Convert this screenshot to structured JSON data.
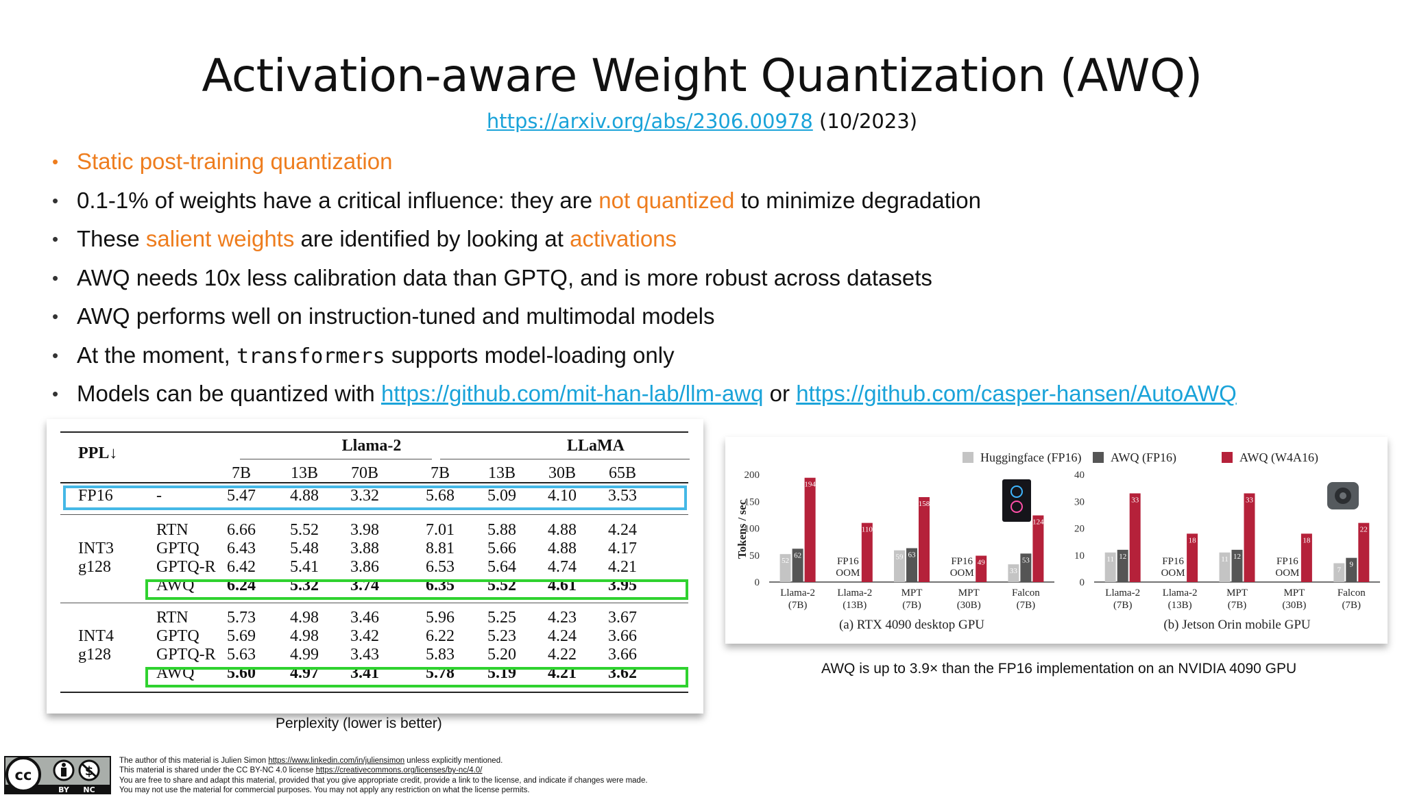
{
  "title": "Activation-aware Weight Quantization (AWQ)",
  "subtitle": {
    "link": "https://arxiv.org/abs/2306.00978",
    "date": "(10/2023)"
  },
  "bullets": {
    "b1": "Static post-training quantization",
    "b2_a": "0.1-1% of weights have a critical influence: they are ",
    "b2_b": "not quantized",
    "b2_c": " to minimize degradation",
    "b3_a": "These ",
    "b3_b": "salient weights",
    "b3_c": " are identified by looking at ",
    "b3_d": "activations",
    "b4": "AWQ needs 10x less calibration data than GPTQ, and is more robust across datasets",
    "b5": "AWQ performs well on instruction-tuned and multimodal models",
    "b6_a": "At the moment, ",
    "b6_code": "transformers",
    "b6_c": " supports model-loading only",
    "b7_a": "Models can be quantized with ",
    "b7_link1": "https://github.com/mit-han-lab/llm-awq",
    "b7_or": " or ",
    "b7_link2": "https://github.com/casper-hansen/AutoAWQ"
  },
  "table": {
    "corner": "PPL↓",
    "group1": "Llama-2",
    "group2": "LLaMA",
    "cols": [
      "7B",
      "13B",
      "70B",
      "7B",
      "13B",
      "30B",
      "65B"
    ],
    "fp16": {
      "label": "FP16",
      "method": "-",
      "values": [
        "5.47",
        "4.88",
        "3.32",
        "5.68",
        "5.09",
        "4.10",
        "3.53"
      ]
    },
    "int3": {
      "label1": "INT3",
      "label2": "g128",
      "rows": [
        {
          "method": "RTN",
          "values": [
            "6.66",
            "5.52",
            "3.98",
            "7.01",
            "5.88",
            "4.88",
            "4.24"
          ]
        },
        {
          "method": "GPTQ",
          "values": [
            "6.43",
            "5.48",
            "3.88",
            "8.81",
            "5.66",
            "4.88",
            "4.17"
          ]
        },
        {
          "method": "GPTQ-R",
          "values": [
            "6.42",
            "5.41",
            "3.86",
            "6.53",
            "5.64",
            "4.74",
            "4.21"
          ]
        },
        {
          "method": "AWQ",
          "values": [
            "6.24",
            "5.32",
            "3.74",
            "6.35",
            "5.52",
            "4.61",
            "3.95"
          ]
        }
      ]
    },
    "int4": {
      "label1": "INT4",
      "label2": "g128",
      "rows": [
        {
          "method": "RTN",
          "values": [
            "5.73",
            "4.98",
            "3.46",
            "5.96",
            "5.25",
            "4.23",
            "3.67"
          ]
        },
        {
          "method": "GPTQ",
          "values": [
            "5.69",
            "4.98",
            "3.42",
            "6.22",
            "5.23",
            "4.24",
            "3.66"
          ]
        },
        {
          "method": "GPTQ-R",
          "values": [
            "5.63",
            "4.99",
            "3.43",
            "5.83",
            "5.20",
            "4.22",
            "3.66"
          ]
        },
        {
          "method": "AWQ",
          "values": [
            "5.60",
            "4.97",
            "3.41",
            "5.78",
            "5.19",
            "4.21",
            "3.62"
          ]
        }
      ]
    },
    "caption": "Perplexity (lower is better)"
  },
  "chart_caption": "AWQ is up to 3.9× than the FP16 implementation on an NVIDIA 4090 GPU",
  "chart_data": [
    {
      "type": "bar",
      "title": "(a) RTX 4090 desktop GPU",
      "ylabel": "Tokens / sec",
      "ylim": [
        0,
        200
      ],
      "yticks": [
        0,
        50,
        100,
        150,
        200
      ],
      "categories": [
        "Llama-2 (7B)",
        "Llama-2 (13B)",
        "MPT (7B)",
        "MPT (30B)",
        "Falcon (7B)"
      ],
      "series": [
        {
          "name": "Huggingface (FP16)",
          "color": "#c4c4c4",
          "values": [
            52,
            null,
            59,
            null,
            33
          ]
        },
        {
          "name": "AWQ (FP16)",
          "color": "#555555",
          "values": [
            62,
            null,
            63,
            null,
            53
          ]
        },
        {
          "name": "AWQ (W4A16)",
          "color": "#b5213a",
          "values": [
            194,
            110,
            158,
            49,
            124
          ]
        }
      ],
      "annotations": [
        {
          "category": "Llama-2 (13B)",
          "text": "FP16 OOM"
        },
        {
          "category": "MPT (30B)",
          "text": "FP16 OOM"
        }
      ],
      "legend": "top"
    },
    {
      "type": "bar",
      "title": "(b) Jetson Orin mobile GPU",
      "ylim": [
        0,
        40
      ],
      "yticks": [
        0,
        10,
        20,
        30,
        40
      ],
      "categories": [
        "Llama-2 (7B)",
        "Llama-2 (13B)",
        "MPT (7B)",
        "MPT (30B)",
        "Falcon (7B)"
      ],
      "series": [
        {
          "name": "Huggingface (FP16)",
          "color": "#c4c4c4",
          "values": [
            11,
            null,
            11,
            null,
            7
          ]
        },
        {
          "name": "AWQ (FP16)",
          "color": "#555555",
          "values": [
            12,
            null,
            12,
            null,
            9
          ]
        },
        {
          "name": "AWQ (W4A16)",
          "color": "#b5213a",
          "values": [
            33,
            18,
            33,
            18,
            22
          ]
        }
      ],
      "annotations": [
        {
          "category": "Llama-2 (13B)",
          "text": "FP16 OOM"
        },
        {
          "category": "MPT (30B)",
          "text": "FP16 OOM"
        }
      ],
      "legend": "top"
    }
  ],
  "footer": {
    "l1_a": "The author of this material is Julien Simon ",
    "l1_link": "https://www.linkedin.com/in/juliensimon",
    "l1_b": " unless explicitly mentioned.",
    "l2_a": "This material is shared under the CC BY-NC 4.0 license ",
    "l2_link": "https://creativecommons.org/licenses/by-nc/4.0/",
    "l3": "You are free to share and adapt this material, provided that you give appropriate credit, provide a link to the license, and indicate if changes were made.",
    "l4": "You may not use the material for commercial purposes. You may not apply any restriction on what the license permits."
  },
  "badge": {
    "by": "BY",
    "nc": "NC"
  }
}
